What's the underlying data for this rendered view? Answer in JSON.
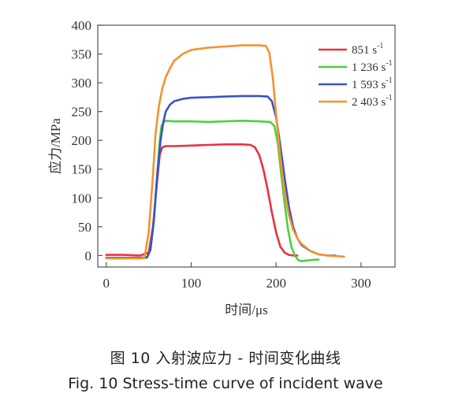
{
  "chart_data": {
    "type": "line",
    "xlabel": "时间/μs",
    "ylabel": "应力/MPa",
    "xlim": [
      -10,
      340
    ],
    "ylim": [
      -20,
      400
    ],
    "xticks": [
      0,
      100,
      200,
      300
    ],
    "yticks": [
      0,
      50,
      100,
      150,
      200,
      250,
      300,
      350,
      400
    ],
    "grid": false,
    "legend_position": "top-right",
    "series": [
      {
        "name": "851 s",
        "sup": "-1",
        "color": "#e8323c",
        "x": [
          0,
          20,
          40,
          50,
          55,
          60,
          63,
          66,
          70,
          80,
          100,
          120,
          140,
          160,
          170,
          175,
          180,
          185,
          190,
          195,
          200,
          205,
          210,
          215,
          220,
          225
        ],
        "y": [
          1,
          1,
          0,
          5,
          50,
          130,
          175,
          188,
          190,
          190,
          191,
          192,
          193,
          193,
          192,
          188,
          175,
          150,
          115,
          75,
          40,
          15,
          5,
          1,
          0,
          0
        ]
      },
      {
        "name": "1 236 s",
        "sup": "-1",
        "color": "#4cd040",
        "x": [
          0,
          20,
          40,
          48,
          52,
          56,
          60,
          63,
          65,
          68,
          70,
          80,
          100,
          120,
          140,
          160,
          180,
          193,
          198,
          202,
          206,
          210,
          214,
          218,
          222,
          226,
          230,
          240,
          250
        ],
        "y": [
          -5,
          -5,
          -5,
          -4,
          10,
          60,
          140,
          200,
          225,
          232,
          234,
          233,
          233,
          232,
          233,
          234,
          233,
          232,
          225,
          195,
          140,
          90,
          45,
          15,
          0,
          -8,
          -10,
          -8,
          -7
        ]
      },
      {
        "name": "1 593 s",
        "sup": "-1",
        "color": "#3654c8",
        "x": [
          0,
          20,
          40,
          48,
          52,
          56,
          60,
          64,
          67,
          70,
          75,
          80,
          90,
          100,
          120,
          140,
          160,
          180,
          190,
          195,
          200,
          205,
          210,
          215,
          220,
          225,
          230,
          240,
          250,
          260,
          270
        ],
        "y": [
          -4,
          -4,
          -4,
          -3,
          10,
          60,
          140,
          200,
          230,
          250,
          262,
          268,
          272,
          274,
          275,
          276,
          277,
          277,
          276,
          268,
          240,
          190,
          135,
          85,
          50,
          30,
          18,
          8,
          2,
          0,
          0
        ]
      },
      {
        "name": "2 403 s",
        "sup": "-1",
        "color": "#f5922c",
        "x": [
          0,
          20,
          40,
          45,
          50,
          55,
          58,
          62,
          66,
          70,
          75,
          80,
          90,
          100,
          120,
          140,
          160,
          180,
          188,
          192,
          196,
          200,
          205,
          210,
          215,
          220,
          225,
          230,
          240,
          250,
          260,
          270,
          280
        ],
        "y": [
          -5,
          -5,
          -5,
          -4,
          40,
          140,
          210,
          260,
          290,
          310,
          325,
          338,
          350,
          357,
          361,
          363,
          365,
          365,
          364,
          352,
          310,
          245,
          170,
          110,
          70,
          45,
          30,
          20,
          8,
          2,
          0,
          -1,
          -2
        ]
      }
    ]
  },
  "caption": {
    "zh": "图 10    入射波应力  - 时间变化曲线",
    "en": "Fig.  10 Stress-time curve of incident wave"
  }
}
